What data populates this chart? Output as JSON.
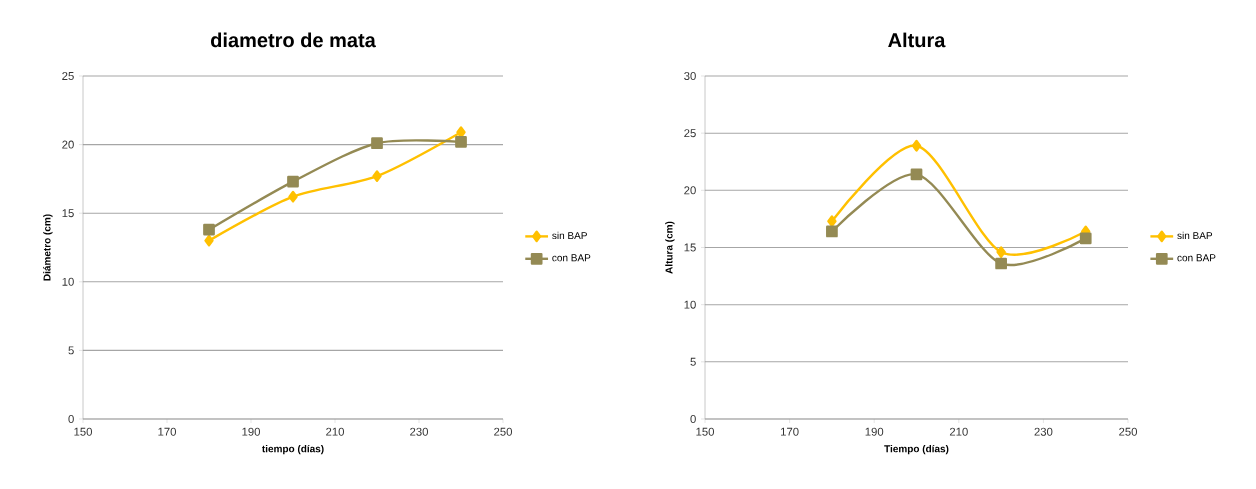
{
  "chart_data": [
    {
      "type": "line",
      "title": "diametro de mata",
      "xlabel": "tiempo (días)",
      "ylabel": "Diámetro (cm)",
      "x": [
        180,
        200,
        220,
        240
      ],
      "xlim": [
        150,
        250
      ],
      "xticks": [
        150,
        170,
        190,
        210,
        230,
        250
      ],
      "ylim": [
        0,
        25
      ],
      "yticks": [
        0,
        5,
        10,
        15,
        20,
        25
      ],
      "grid": "y",
      "legend": "right",
      "series": [
        {
          "name": "sin BAP",
          "color": "#ffc000",
          "marker": "diamond",
          "values": [
            13.0,
            16.2,
            17.7,
            20.9
          ]
        },
        {
          "name": "con BAP",
          "color": "#948a54",
          "marker": "square",
          "values": [
            13.8,
            17.3,
            20.1,
            20.2
          ]
        }
      ]
    },
    {
      "type": "line",
      "title": "Altura",
      "xlabel": "Tiempo (días)",
      "ylabel": "Altura (cm)",
      "x": [
        180,
        200,
        220,
        240
      ],
      "xlim": [
        150,
        250
      ],
      "xticks": [
        150,
        170,
        190,
        210,
        230,
        250
      ],
      "ylim": [
        0,
        30
      ],
      "yticks": [
        0,
        5,
        10,
        15,
        20,
        25,
        30
      ],
      "grid": "y",
      "legend": "right",
      "series": [
        {
          "name": "sin BAP",
          "color": "#ffc000",
          "marker": "diamond",
          "values": [
            17.3,
            23.9,
            14.6,
            16.4
          ]
        },
        {
          "name": "con BAP",
          "color": "#948a54",
          "marker": "square",
          "values": [
            16.4,
            21.4,
            13.6,
            15.8
          ]
        }
      ]
    }
  ]
}
